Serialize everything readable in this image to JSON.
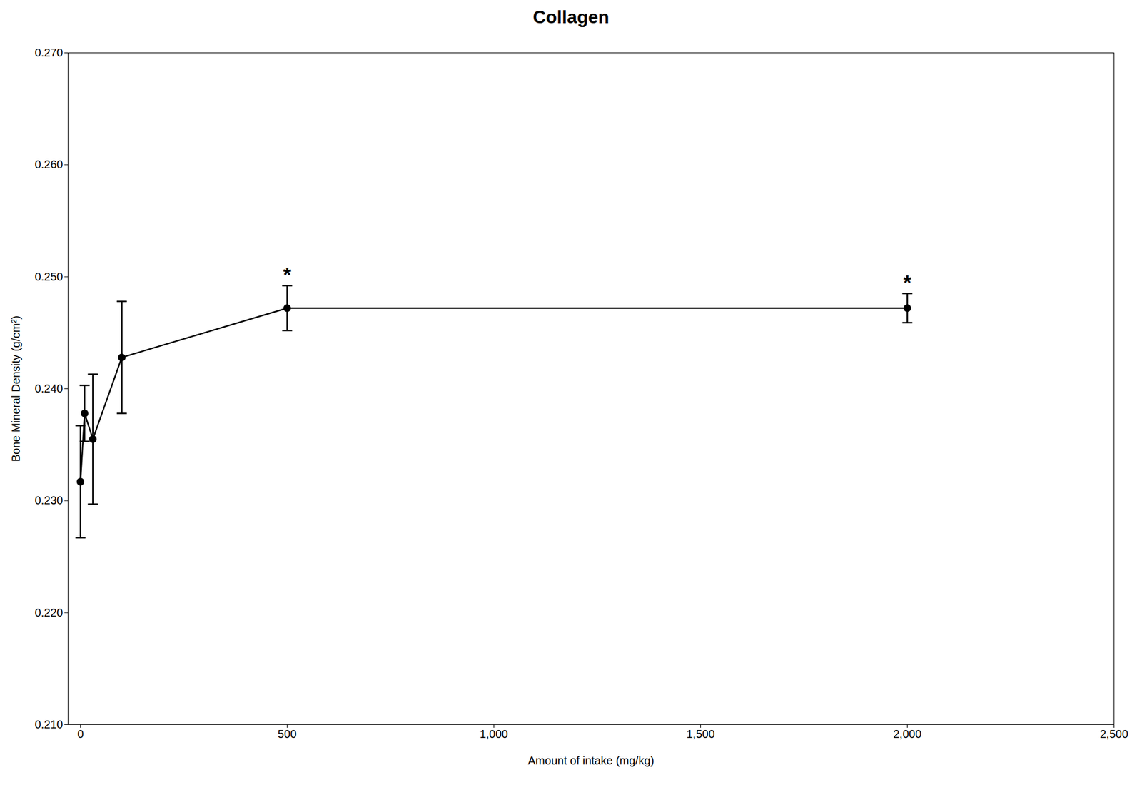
{
  "chart_data": {
    "type": "line",
    "title": "Collagen",
    "xlabel": "Amount of intake (mg/kg)",
    "ylabel": "Bone Mineral Density (g/cm²)",
    "x": [
      0,
      10,
      30,
      100,
      500,
      2000
    ],
    "values": [
      0.2317,
      0.2378,
      0.2355,
      0.2428,
      0.2472,
      0.2472
    ],
    "yerr": [
      0.005,
      0.0025,
      0.0058,
      0.005,
      0.002,
      0.0013
    ],
    "xlim": [
      -30,
      2500
    ],
    "ylim": [
      0.21,
      0.27
    ],
    "xticks": [
      0,
      500,
      1000,
      1500,
      2000,
      2500
    ],
    "yticks": [
      0.21,
      0.22,
      0.23,
      0.24,
      0.25,
      0.26,
      0.27
    ],
    "color": "#000000",
    "marker": "o",
    "line_style": "solid",
    "grid": false,
    "annotations": [
      {
        "x": 500,
        "text": "*"
      },
      {
        "x": 2000,
        "text": "*"
      }
    ]
  }
}
